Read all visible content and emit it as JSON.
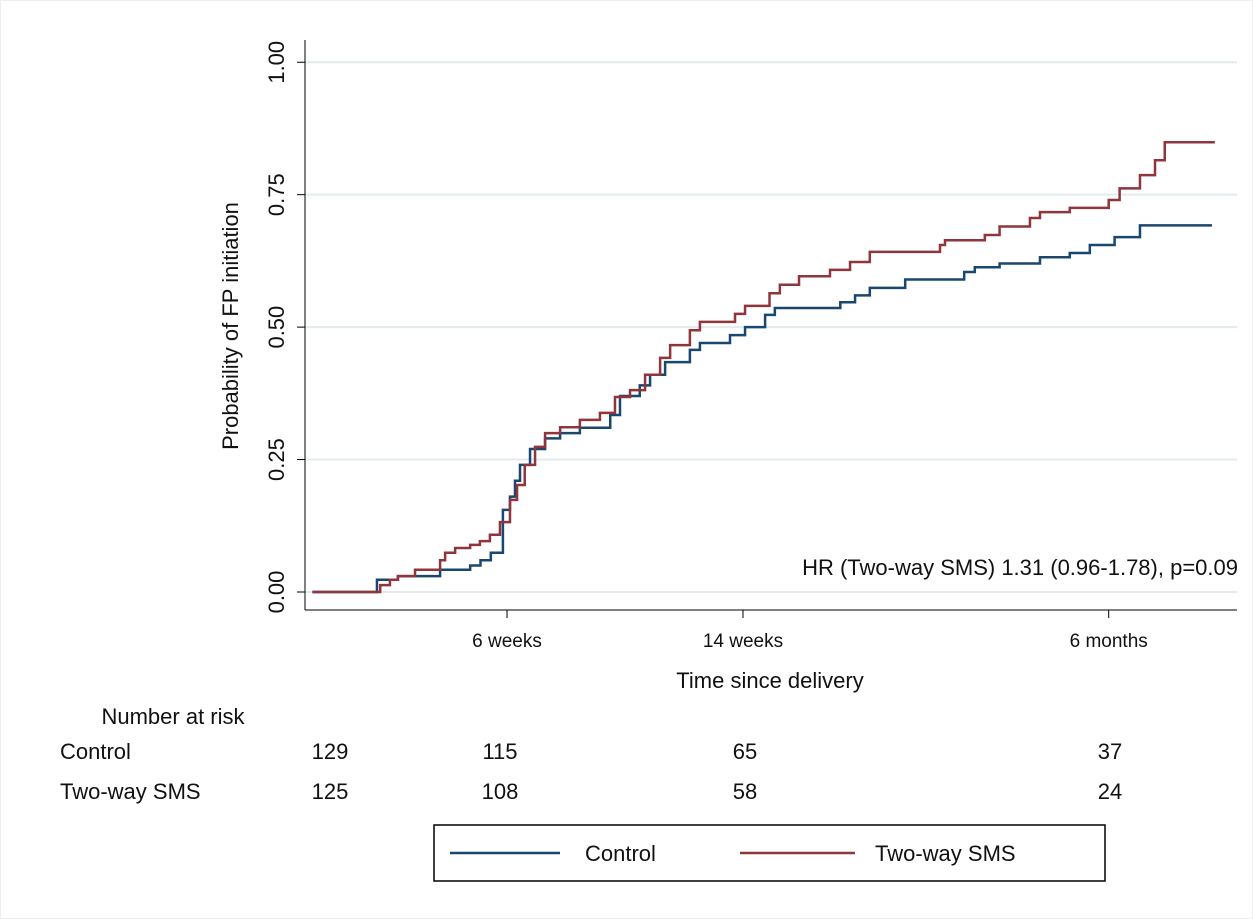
{
  "chart_data": {
    "type": "step",
    "y_label": "Probability of FP initiation",
    "x_label": "Time since delivery",
    "annotation": "HR (Two-way SMS) 1.31 (0.96-1.78), p=0.09",
    "xlim": [
      -0.85,
      30.75
    ],
    "ylim": [
      -0.034,
      1.042
    ],
    "xticks": [
      {
        "value": 6,
        "label": "6 weeks"
      },
      {
        "value": 14,
        "label": "14 weeks"
      },
      {
        "value": 26.4,
        "label": "6 months"
      }
    ],
    "yticks": [
      {
        "value": 0,
        "label": "0.00"
      },
      {
        "value": 0.25,
        "label": "0.25"
      },
      {
        "value": 0.5,
        "label": "0.50"
      },
      {
        "value": 0.75,
        "label": "0.75"
      },
      {
        "value": 1,
        "label": "1.00"
      }
    ],
    "grid": true,
    "series": [
      {
        "name": "Control",
        "color": "#1a476f",
        "x": [
          -0.6,
          1.59,
          2.3,
          3.73,
          4.75,
          5.1,
          5.45,
          5.86,
          6.1,
          6.27,
          6.44,
          6.78,
          7.29,
          7.8,
          8.47,
          9.5,
          9.83,
          10.5,
          10.85,
          11.36,
          12.2,
          12.54,
          13.56,
          14.07,
          14.75,
          15.08,
          17.3,
          17.8,
          18.3,
          19.5,
          21.5,
          21.86,
          22.7,
          24.07,
          25.08,
          25.76,
          26.6,
          27.46,
          29.9
        ],
        "values": [
          0,
          0.023,
          0.03,
          0.042,
          0.05,
          0.06,
          0.074,
          0.155,
          0.18,
          0.21,
          0.24,
          0.27,
          0.29,
          0.3,
          0.31,
          0.334,
          0.37,
          0.39,
          0.41,
          0.434,
          0.457,
          0.47,
          0.485,
          0.5,
          0.523,
          0.536,
          0.547,
          0.56,
          0.574,
          0.59,
          0.604,
          0.613,
          0.62,
          0.632,
          0.64,
          0.655,
          0.67,
          0.692,
          0.692
        ]
      },
      {
        "name": "Two-way SMS",
        "color": "#90353b",
        "x": [
          -0.6,
          1.7,
          2.03,
          2.3,
          2.88,
          3.73,
          3.9,
          4.24,
          4.75,
          5.08,
          5.42,
          5.76,
          6.1,
          6.34,
          6.6,
          6.95,
          7.29,
          7.8,
          8.47,
          9.15,
          9.66,
          10.17,
          10.68,
          11.19,
          11.53,
          12.2,
          12.54,
          13.73,
          14.07,
          14.9,
          15.25,
          15.9,
          16.95,
          17.63,
          18.3,
          20.68,
          20.85,
          22.2,
          22.7,
          23.73,
          24.07,
          25.08,
          26.4,
          26.77,
          27.46,
          27.97,
          28.3,
          30
        ],
        "values": [
          0,
          0.013,
          0.023,
          0.03,
          0.042,
          0.06,
          0.074,
          0.083,
          0.089,
          0.096,
          0.108,
          0.132,
          0.174,
          0.202,
          0.24,
          0.274,
          0.3,
          0.311,
          0.325,
          0.338,
          0.368,
          0.381,
          0.41,
          0.442,
          0.466,
          0.494,
          0.51,
          0.525,
          0.54,
          0.564,
          0.58,
          0.596,
          0.608,
          0.623,
          0.642,
          0.655,
          0.664,
          0.674,
          0.69,
          0.706,
          0.717,
          0.725,
          0.74,
          0.762,
          0.787,
          0.815,
          0.849,
          0.849
        ]
      }
    ],
    "risk_table": {
      "title": "Number at risk",
      "rows": [
        {
          "name": "Control",
          "values": [
            129,
            115,
            65,
            37
          ]
        },
        {
          "name": "Two-way SMS",
          "values": [
            125,
            108,
            58,
            24
          ]
        }
      ]
    }
  }
}
